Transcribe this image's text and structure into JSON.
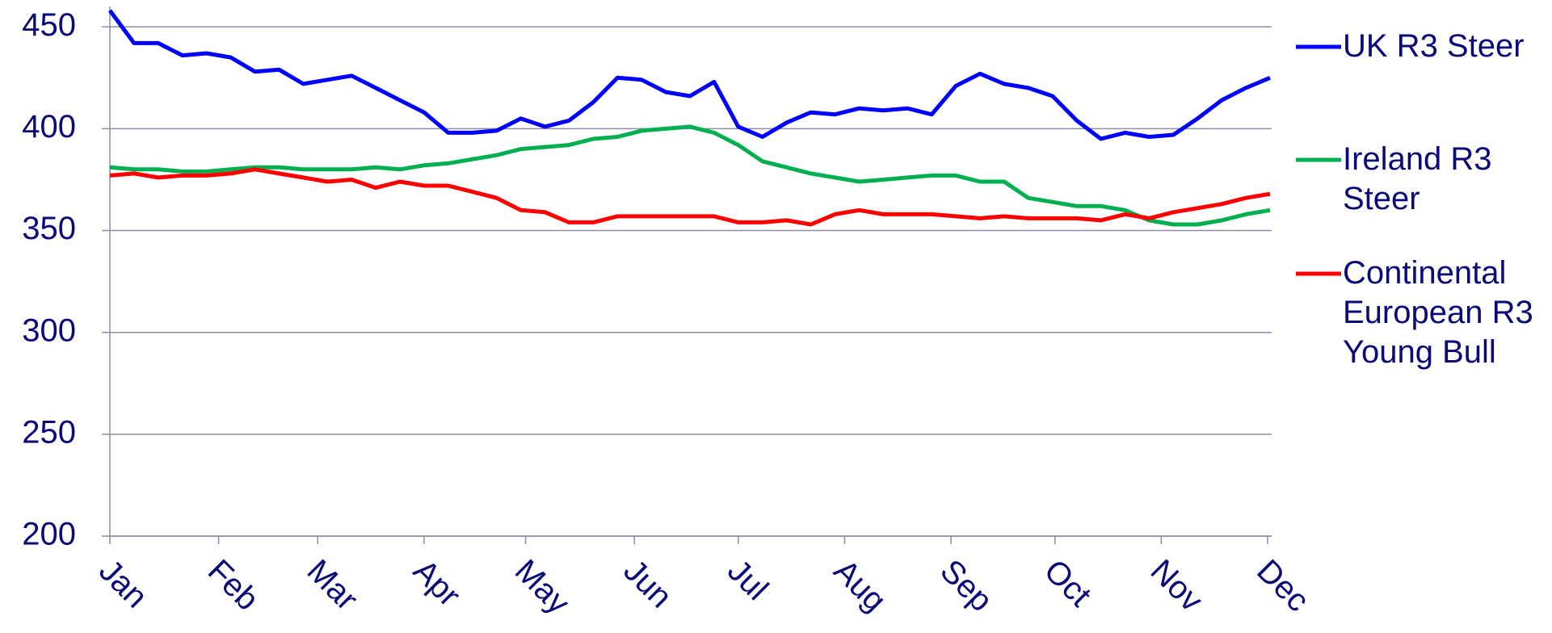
{
  "chart_data": {
    "type": "line",
    "xlim": [
      0,
      48
    ],
    "xticks": [
      {
        "value": 0,
        "label": "Jan"
      },
      {
        "value": 4.5,
        "label": "Feb"
      },
      {
        "value": 8.6,
        "label": "Mar"
      },
      {
        "value": 13,
        "label": "Apr"
      },
      {
        "value": 17.2,
        "label": "May"
      },
      {
        "value": 21.7,
        "label": "Jun"
      },
      {
        "value": 26,
        "label": "Jul"
      },
      {
        "value": 30.4,
        "label": "Aug"
      },
      {
        "value": 34.8,
        "label": "Sep"
      },
      {
        "value": 39.1,
        "label": "Oct"
      },
      {
        "value": 43.5,
        "label": "Nov"
      },
      {
        "value": 47.9,
        "label": "Dec"
      }
    ],
    "ylim": [
      200,
      460
    ],
    "yticks": [
      200,
      250,
      300,
      350,
      400,
      450
    ],
    "grid": true,
    "legend": "right",
    "series": [
      {
        "name": "UK R3 Steer",
        "color": "#0000ff",
        "values": [
          458,
          442,
          442,
          436,
          437,
          435,
          428,
          429,
          422,
          424,
          426,
          420,
          414,
          408,
          398,
          398,
          399,
          405,
          401,
          404,
          413,
          425,
          424,
          418,
          416,
          423,
          401,
          396,
          403,
          408,
          407,
          410,
          409,
          410,
          407,
          421,
          427,
          422,
          420,
          416,
          404,
          395,
          398,
          396,
          397,
          405,
          414,
          420,
          425
        ]
      },
      {
        "name": "Ireland R3 Steer",
        "color": "#00b050",
        "values": [
          381,
          380,
          380,
          379,
          379,
          380,
          381,
          381,
          380,
          380,
          380,
          381,
          380,
          382,
          383,
          385,
          387,
          390,
          391,
          392,
          395,
          396,
          399,
          400,
          401,
          398,
          392,
          384,
          381,
          378,
          376,
          374,
          375,
          376,
          377,
          377,
          374,
          374,
          366,
          364,
          362,
          362,
          360,
          355,
          353,
          353,
          355,
          358,
          360
        ]
      },
      {
        "name": "Continental European R3 Young Bull",
        "color": "#ff0000",
        "values": [
          377,
          378,
          376,
          377,
          377,
          378,
          380,
          378,
          376,
          374,
          375,
          371,
          374,
          372,
          372,
          369,
          366,
          360,
          359,
          354,
          354,
          357,
          357,
          357,
          357,
          357,
          354,
          354,
          355,
          353,
          358,
          360,
          358,
          358,
          358,
          357,
          356,
          357,
          356,
          356,
          356,
          355,
          358,
          356,
          359,
          361,
          363,
          366,
          368
        ]
      }
    ]
  }
}
